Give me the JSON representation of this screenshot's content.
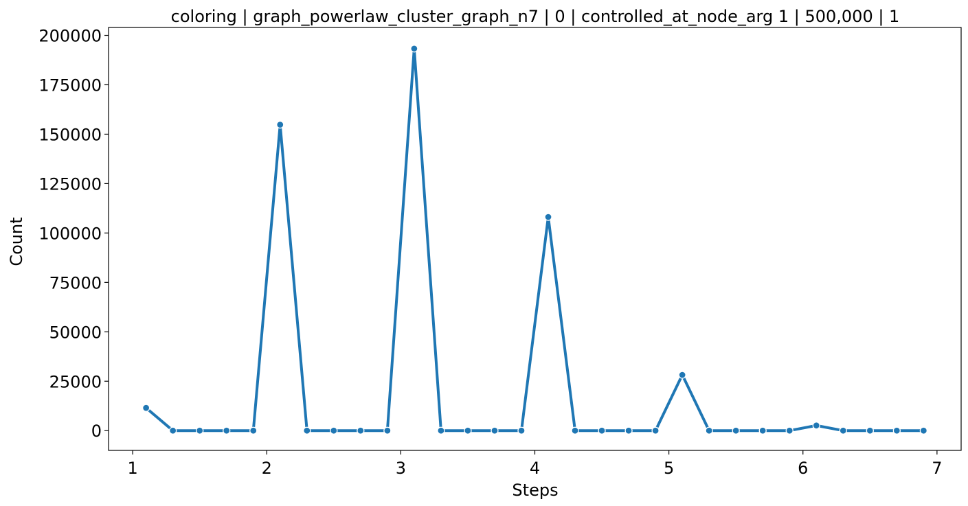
{
  "chart_data": {
    "type": "line",
    "title": "coloring | graph_powerlaw_cluster_graph_n7 | 0 | controlled_at_node_arg 1 | 500,000 | 1",
    "xlabel": "Steps",
    "ylabel": "Count",
    "xlim": [
      0.82,
      7.18
    ],
    "ylim": [
      -10000,
      204000
    ],
    "xticks": [
      1,
      2,
      3,
      4,
      5,
      6,
      7
    ],
    "yticks": [
      0,
      25000,
      50000,
      75000,
      100000,
      125000,
      150000,
      175000,
      200000
    ],
    "grid": false,
    "legend": "none",
    "series": [
      {
        "color": "#1f77b4",
        "x": [
          1.1,
          1.3,
          1.5,
          1.7,
          1.9,
          2.1,
          2.3,
          2.5,
          2.7,
          2.9,
          3.1,
          3.3,
          3.5,
          3.7,
          3.9,
          4.1,
          4.3,
          4.5,
          4.7,
          4.9,
          5.1,
          5.3,
          5.5,
          5.7,
          5.9,
          6.1,
          6.3,
          6.5,
          6.7,
          6.9
        ],
        "y": [
          11500,
          0,
          0,
          0,
          0,
          154800,
          0,
          0,
          0,
          0,
          193300,
          0,
          0,
          0,
          0,
          108100,
          0,
          0,
          0,
          0,
          28200,
          0,
          0,
          0,
          0,
          2600,
          0,
          0,
          0,
          0
        ]
      }
    ]
  }
}
